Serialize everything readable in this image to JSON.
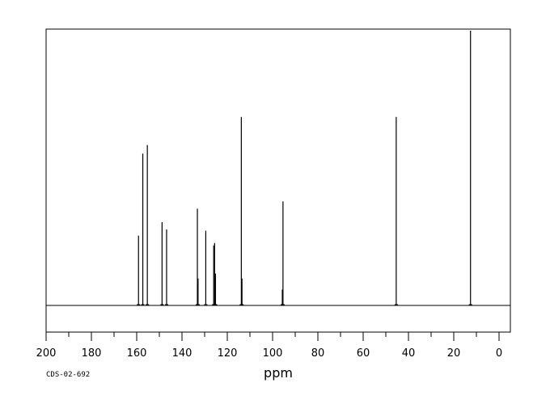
{
  "chart_data": {
    "type": "line",
    "title": "",
    "xlabel": "ppm",
    "ylabel": "",
    "xlim": [
      200,
      -5
    ],
    "x_reversed": true,
    "ylim": [
      -0.12,
      1.12
    ],
    "grid": false,
    "legend": "none",
    "x_ticks": [
      200,
      180,
      160,
      140,
      120,
      100,
      80,
      60,
      40,
      20,
      0
    ],
    "x_tick_labels": [
      "200",
      "180",
      "160",
      "140",
      "120",
      "100",
      "80",
      "60",
      "40",
      "20",
      "0"
    ],
    "series": [
      {
        "peaks": [
          {
            "x": 159.2,
            "y": 0.285
          },
          {
            "x": 157.3,
            "y": 0.62
          },
          {
            "x": 155.3,
            "y": 0.655
          },
          {
            "x": 148.8,
            "y": 0.34
          },
          {
            "x": 146.8,
            "y": 0.31
          },
          {
            "x": 133.2,
            "y": 0.395
          },
          {
            "x": 132.9,
            "y": 0.11
          },
          {
            "x": 129.5,
            "y": 0.305
          },
          {
            "x": 126.0,
            "y": 0.245
          },
          {
            "x": 125.6,
            "y": 0.255
          },
          {
            "x": 125.2,
            "y": 0.13
          },
          {
            "x": 113.8,
            "y": 0.77
          },
          {
            "x": 113.5,
            "y": 0.11
          },
          {
            "x": 95.4,
            "y": 0.425
          },
          {
            "x": 95.7,
            "y": 0.065
          },
          {
            "x": 45.4,
            "y": 0.77
          },
          {
            "x": 12.6,
            "y": 1.13
          }
        ]
      }
    ]
  },
  "footer": {
    "code": "CDS-02-692"
  }
}
